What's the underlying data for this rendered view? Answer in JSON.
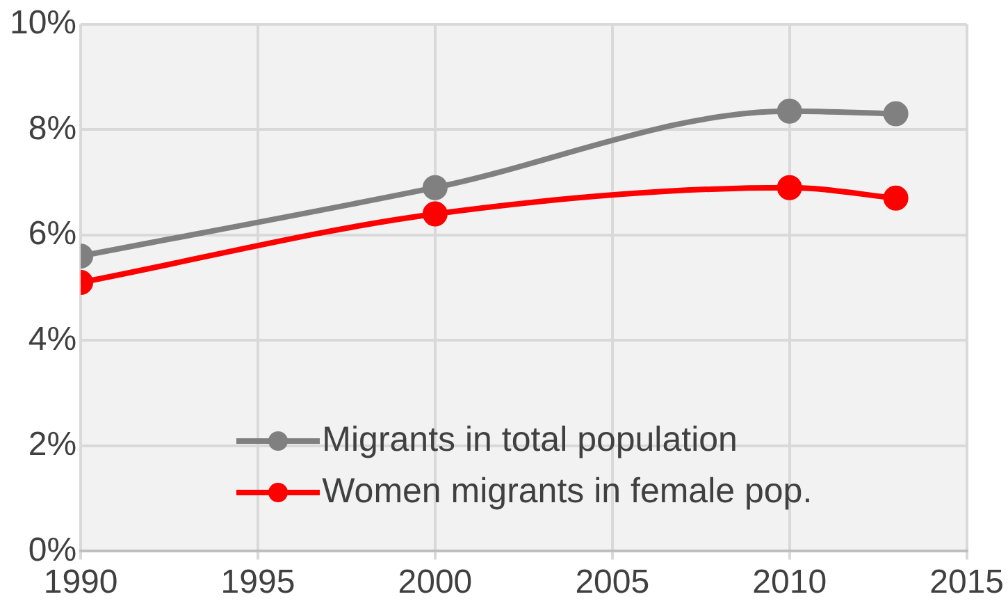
{
  "chart_data": {
    "type": "line",
    "x": [
      1990,
      2000,
      2010,
      2013
    ],
    "series": [
      {
        "name": "Migrants in total population",
        "color": "#808080",
        "values": [
          5.6,
          6.9,
          8.35,
          8.3
        ]
      },
      {
        "name": "Women migrants in female pop.",
        "color": "#ff0000",
        "values": [
          5.1,
          6.4,
          6.9,
          6.7
        ]
      }
    ],
    "xlim": [
      1990,
      2015
    ],
    "xticks": [
      1990,
      1995,
      2000,
      2005,
      2010,
      2015
    ],
    "ylim": [
      0,
      10
    ],
    "yticks": [
      {
        "value": 0,
        "label": "0%"
      },
      {
        "value": 2,
        "label": "2%"
      },
      {
        "value": 4,
        "label": "4%"
      },
      {
        "value": 6,
        "label": "6%"
      },
      {
        "value": 8,
        "label": "8%"
      },
      {
        "value": 10,
        "label": "10%"
      }
    ],
    "grid": true,
    "legend": "bottom",
    "marker": "circle",
    "line_style": "solid"
  }
}
